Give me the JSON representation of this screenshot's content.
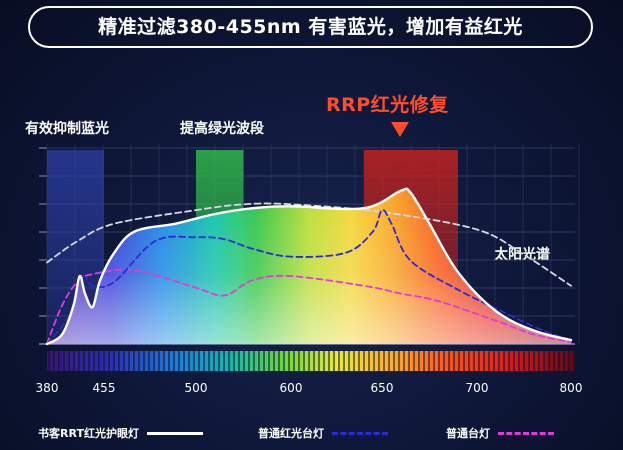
{
  "headline": "精准过滤380-455nm 有害蓝光，增加有益红光",
  "annotations": {
    "blue_band": "有效抑制蓝光",
    "green_band": "提高绿光波段",
    "red_band": "RRP红光修复",
    "sunlight": "太阳光谱"
  },
  "legend": [
    {
      "label": "书客RRT红光护眼灯",
      "style": "solid",
      "color": "#ffffff"
    },
    {
      "label": "普通红光台灯",
      "style": "dashed",
      "color": "#2a2ad6"
    },
    {
      "label": "普通台灯",
      "style": "dashed",
      "color": "#e23ad6"
    }
  ],
  "colors": {
    "background": "#0d1636",
    "accent": "#ff4c2a",
    "blue_band": "#2d3fa8",
    "green_band": "#2fb84a",
    "red_band": "#c4221e"
  },
  "chart_data": {
    "type": "line",
    "xlabel": "",
    "ylabel": "",
    "x_ticks": [
      380,
      455,
      500,
      600,
      650,
      700,
      800
    ],
    "xlim": [
      380,
      800
    ],
    "ylim": [
      0,
      1
    ],
    "highlight_bands": [
      {
        "name": "有效抑制蓝光",
        "x": [
          380,
          455
        ],
        "color": "#2d3fa8"
      },
      {
        "name": "提高绿光波段",
        "x": [
          500,
          550
        ],
        "color": "#2fb84a"
      },
      {
        "name": "RRP红光修复",
        "x": [
          640,
          690
        ],
        "color": "#c4221e"
      }
    ],
    "series": [
      {
        "name": "书客RRT红光护眼灯",
        "line": "solid",
        "color": "#ffffff",
        "x": [
          380,
          400,
          415,
          423,
          430,
          440,
          450,
          460,
          470,
          490,
          520,
          560,
          600,
          640,
          660,
          665,
          675,
          690,
          720,
          760,
          800
        ],
        "y": [
          0.0,
          0.05,
          0.2,
          0.35,
          0.26,
          0.19,
          0.33,
          0.47,
          0.58,
          0.62,
          0.67,
          0.7,
          0.71,
          0.7,
          0.79,
          0.78,
          0.62,
          0.37,
          0.17,
          0.07,
          0.02
        ]
      },
      {
        "name": "普通红光台灯",
        "line": "dashed",
        "color": "#2a2ad6",
        "x": [
          380,
          410,
          425,
          440,
          460,
          480,
          500,
          530,
          560,
          600,
          630,
          645,
          650,
          655,
          665,
          690,
          730,
          770,
          800
        ],
        "y": [
          0.0,
          0.15,
          0.35,
          0.3,
          0.32,
          0.53,
          0.55,
          0.54,
          0.49,
          0.45,
          0.47,
          0.58,
          0.69,
          0.62,
          0.43,
          0.28,
          0.16,
          0.07,
          0.02
        ]
      },
      {
        "name": "普通台灯",
        "line": "dashed",
        "color": "#e23ad6",
        "x": [
          380,
          400,
          420,
          440,
          470,
          500,
          530,
          560,
          600,
          640,
          660,
          680,
          720,
          760,
          800
        ],
        "y": [
          0.0,
          0.2,
          0.32,
          0.36,
          0.38,
          0.29,
          0.25,
          0.33,
          0.35,
          0.3,
          0.26,
          0.22,
          0.12,
          0.05,
          0.01
        ]
      },
      {
        "name": "太阳光谱",
        "line": "dashed",
        "color": "#d8d8e0",
        "x": [
          380,
          420,
          460,
          500,
          550,
          600,
          650,
          700,
          750,
          800
        ],
        "y": [
          0.42,
          0.53,
          0.62,
          0.69,
          0.72,
          0.72,
          0.68,
          0.59,
          0.46,
          0.3
        ]
      }
    ]
  }
}
